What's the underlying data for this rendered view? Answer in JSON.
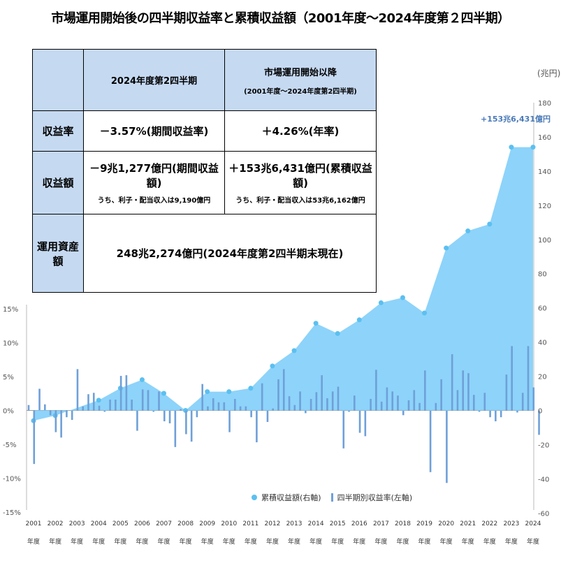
{
  "title": "市場運用開始後の四半期収益率と累積収益額（2001年度～2024年度第２四半期）",
  "table": {
    "col1_header": "2024年度第2四半期",
    "col2_header": "市場運用開始以降",
    "col2_subheader": "(2001年度～2024年度第2四半期)",
    "rows": [
      {
        "label": "収益率",
        "col1": "－3.57%(期間収益率)",
        "col2": "＋4.26%(年率)"
      },
      {
        "label": "収益額",
        "col1": "－9兆1,277億円(期間収益額)",
        "col1_sub": "うち、利子・配当収入は9,190億円",
        "col2": "＋153兆6,431億円(累積収益額)",
        "col2_sub": "うち、利子・配当収入は53兆6,162億円"
      },
      {
        "label": "運用資産額",
        "value": "248兆2,274億円(2024年度第2四半期末現在)"
      }
    ]
  },
  "right_axis_unit": "(兆円)",
  "annotation": "+153兆6,431億円",
  "legend": {
    "area": "累積収益額(右軸)",
    "bar": "四半期別収益率(左軸)"
  },
  "colors": {
    "area": "#8dd3fa",
    "area_marker": "#5bc0f0",
    "bar": "#6fa0d8",
    "annotation": "#4a7ab8"
  },
  "chart_data": {
    "type": "bar+area",
    "x_labels": [
      "2001",
      "2002",
      "2003",
      "2004",
      "2005",
      "2006",
      "2007",
      "2008",
      "2009",
      "2010",
      "2011",
      "2012",
      "2013",
      "2014",
      "2015",
      "2016",
      "2017",
      "2018",
      "2019",
      "2020",
      "2021",
      "2022",
      "2023",
      "2024"
    ],
    "x_sublabel": "年度",
    "left_axis": {
      "ticks": [
        "15%",
        "10%",
        "5%",
        "0%",
        "-5%",
        "-10%",
        "-15%"
      ],
      "ylim": [
        -15,
        15
      ]
    },
    "right_axis": {
      "ticks": [
        "180",
        "160",
        "140",
        "120",
        "100",
        "80",
        "60",
        "40",
        "20",
        "0",
        "-20",
        "-40",
        "-60"
      ],
      "ylim": [
        -60,
        180
      ]
    },
    "quarterly_return_pct": [
      0.8,
      -7.9,
      3.2,
      0.9,
      -0.7,
      -3.2,
      -4.0,
      -1.0,
      -1.4,
      6.1,
      0.6,
      2.4,
      2.6,
      0.7,
      -0.2,
      1.6,
      1.6,
      5.1,
      5.2,
      1.6,
      -3.0,
      3.1,
      3.0,
      -0.2,
      2.8,
      -1.6,
      -1.9,
      -5.4,
      0.2,
      -3.5,
      -4.6,
      -1.0,
      3.9,
      0.6,
      1.8,
      1.2,
      1.2,
      -3.2,
      1.7,
      0.6,
      0.6,
      -1.0,
      -4.7,
      4.0,
      -1.7,
      0.3,
      4.6,
      6.1,
      2.1,
      0.8,
      2.8,
      -0.4,
      1.7,
      2.7,
      5.2,
      1.8,
      2.8,
      3.5,
      -5.6,
      -0.2,
      2.2,
      -3.3,
      -3.8,
      1.7,
      6.0,
      1.3,
      3.4,
      2.8,
      2.2,
      -0.7,
      1.5,
      3.0,
      1.1,
      5.9,
      -9.1,
      1.1,
      4.6,
      -10.7,
      8.3,
      3.0,
      5.9,
      5.5,
      2.3,
      -0.2,
      2.6,
      -1.0,
      -1.6,
      -1.0,
      5.3,
      9.5,
      -0.3,
      2.6,
      9.5,
      3.4,
      -3.6
    ],
    "cumulative_trillion_yen": [
      [
        2001,
        -6
      ],
      [
        2002,
        -3
      ],
      [
        2004,
        6
      ],
      [
        2005,
        13
      ],
      [
        2006,
        18
      ],
      [
        2007,
        10
      ],
      [
        2008,
        0
      ],
      [
        2009,
        11
      ],
      [
        2010,
        11
      ],
      [
        2011,
        13
      ],
      [
        2012,
        26
      ],
      [
        2013,
        35
      ],
      [
        2014,
        51
      ],
      [
        2015,
        45
      ],
      [
        2016,
        53
      ],
      [
        2017,
        63
      ],
      [
        2018,
        66
      ],
      [
        2019,
        57
      ],
      [
        2020,
        95
      ],
      [
        2021,
        105
      ],
      [
        2022,
        109
      ],
      [
        2023,
        154
      ],
      [
        2024,
        154
      ]
    ]
  }
}
